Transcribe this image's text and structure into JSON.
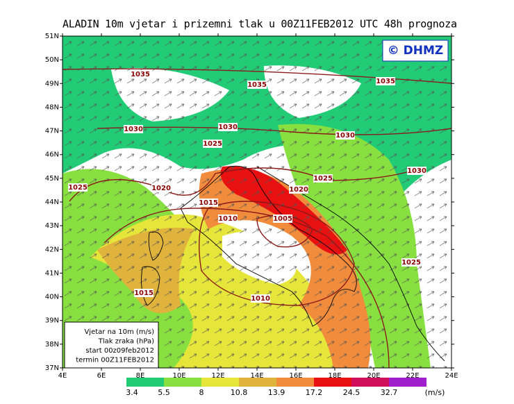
{
  "title": "ALADIN 10m vjetar i prizemni tlak u 00Z11FEB2012 UTC 48h prognoza",
  "logo": "© DHMZ",
  "lat_ticks": [
    "51N",
    "50N",
    "49N",
    "48N",
    "47N",
    "46N",
    "45N",
    "44N",
    "43N",
    "42N",
    "41N",
    "40N",
    "39N",
    "38N",
    "37N"
  ],
  "lon_ticks": [
    "4E",
    "6E",
    "8E",
    "10E",
    "12E",
    "14E",
    "16E",
    "18E",
    "20E",
    "22E",
    "24E"
  ],
  "isobar_labels": [
    1035,
    1035,
    1035,
    1030,
    1030,
    1030,
    1025,
    1025,
    1030,
    1025,
    1020,
    1020,
    1015,
    1010,
    1005,
    1025,
    1015,
    1010
  ],
  "legend_box": [
    "Vjetar na 10m (m/s)",
    "Tlak zraka (hPa)",
    "start 00z09feb2012",
    "termin 00Z11FEB2012"
  ],
  "colorbar": {
    "levels": [
      3.4,
      5.5,
      8,
      10.8,
      13.9,
      17.2,
      24.5,
      32.7
    ],
    "colors": [
      "#22cc77",
      "#88e040",
      "#e6e63a",
      "#e0b43c",
      "#f08c3c",
      "#e81010",
      "#d0105a",
      "#a01ecc"
    ],
    "unit": "(m/s)"
  }
}
